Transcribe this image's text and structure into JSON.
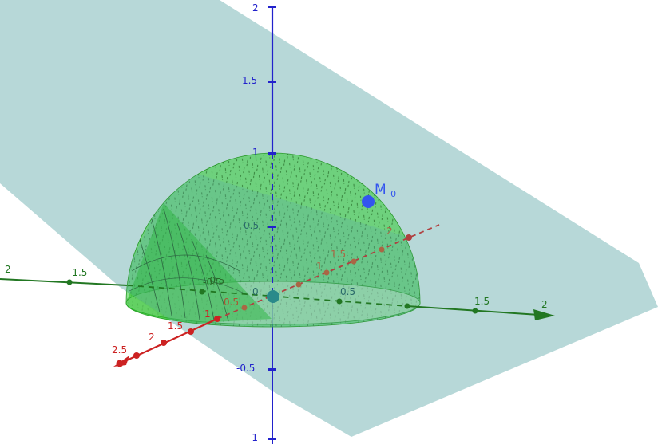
{
  "scene": {
    "point_M": {
      "label": "M",
      "subscript": "0"
    },
    "origin_label": "0",
    "colors": {
      "z_axis": "#2222cc",
      "x_axis": "#cc2222",
      "y_axis": "#227722",
      "plane": "#5fa8a8",
      "sphere": "#33cc33",
      "point_M": "#3355ee",
      "origin_point": "#2a8a8a"
    }
  },
  "axes": {
    "z": {
      "ticks": [
        {
          "value": "2"
        },
        {
          "value": "1.5"
        },
        {
          "value": "1"
        },
        {
          "value": "0.5"
        },
        {
          "value": "-0.5"
        },
        {
          "value": "-1"
        }
      ]
    },
    "y": {
      "ticks": [
        {
          "value": "2"
        },
        {
          "value": "-1.5"
        },
        {
          "value": "-0.5"
        },
        {
          "value": "0.5"
        },
        {
          "value": "1.5"
        },
        {
          "value": "2"
        }
      ]
    },
    "x": {
      "ticks": [
        {
          "value": "2.5"
        },
        {
          "value": "2"
        },
        {
          "value": "1.5"
        },
        {
          "value": "1"
        },
        {
          "value": "0.5"
        },
        {
          "value": "-0.5"
        },
        {
          "value": "1"
        },
        {
          "value": "1.5"
        },
        {
          "value": "2"
        }
      ]
    }
  }
}
